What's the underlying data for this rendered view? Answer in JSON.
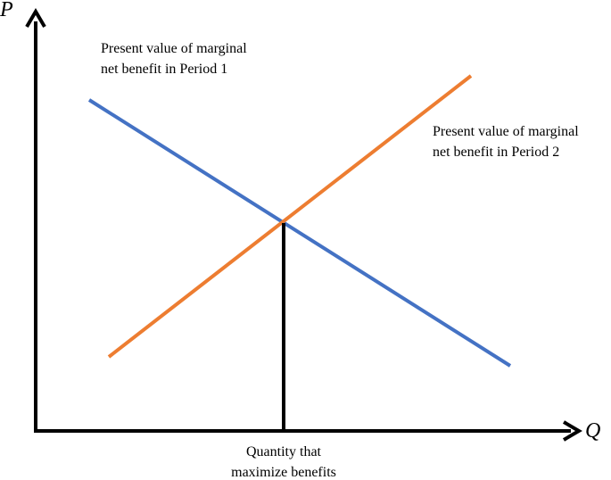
{
  "axes": {
    "y_label": "P",
    "x_label": "Q"
  },
  "curves": [
    {
      "label_lines": [
        "Present value of marginal",
        "net benefit in Period 1"
      ]
    },
    {
      "label_lines": [
        "Present value of marginal",
        "net benefit in Period 2"
      ]
    }
  ],
  "equilibrium": {
    "label_lines": [
      "Quantity that",
      "maximize benefits"
    ]
  }
}
